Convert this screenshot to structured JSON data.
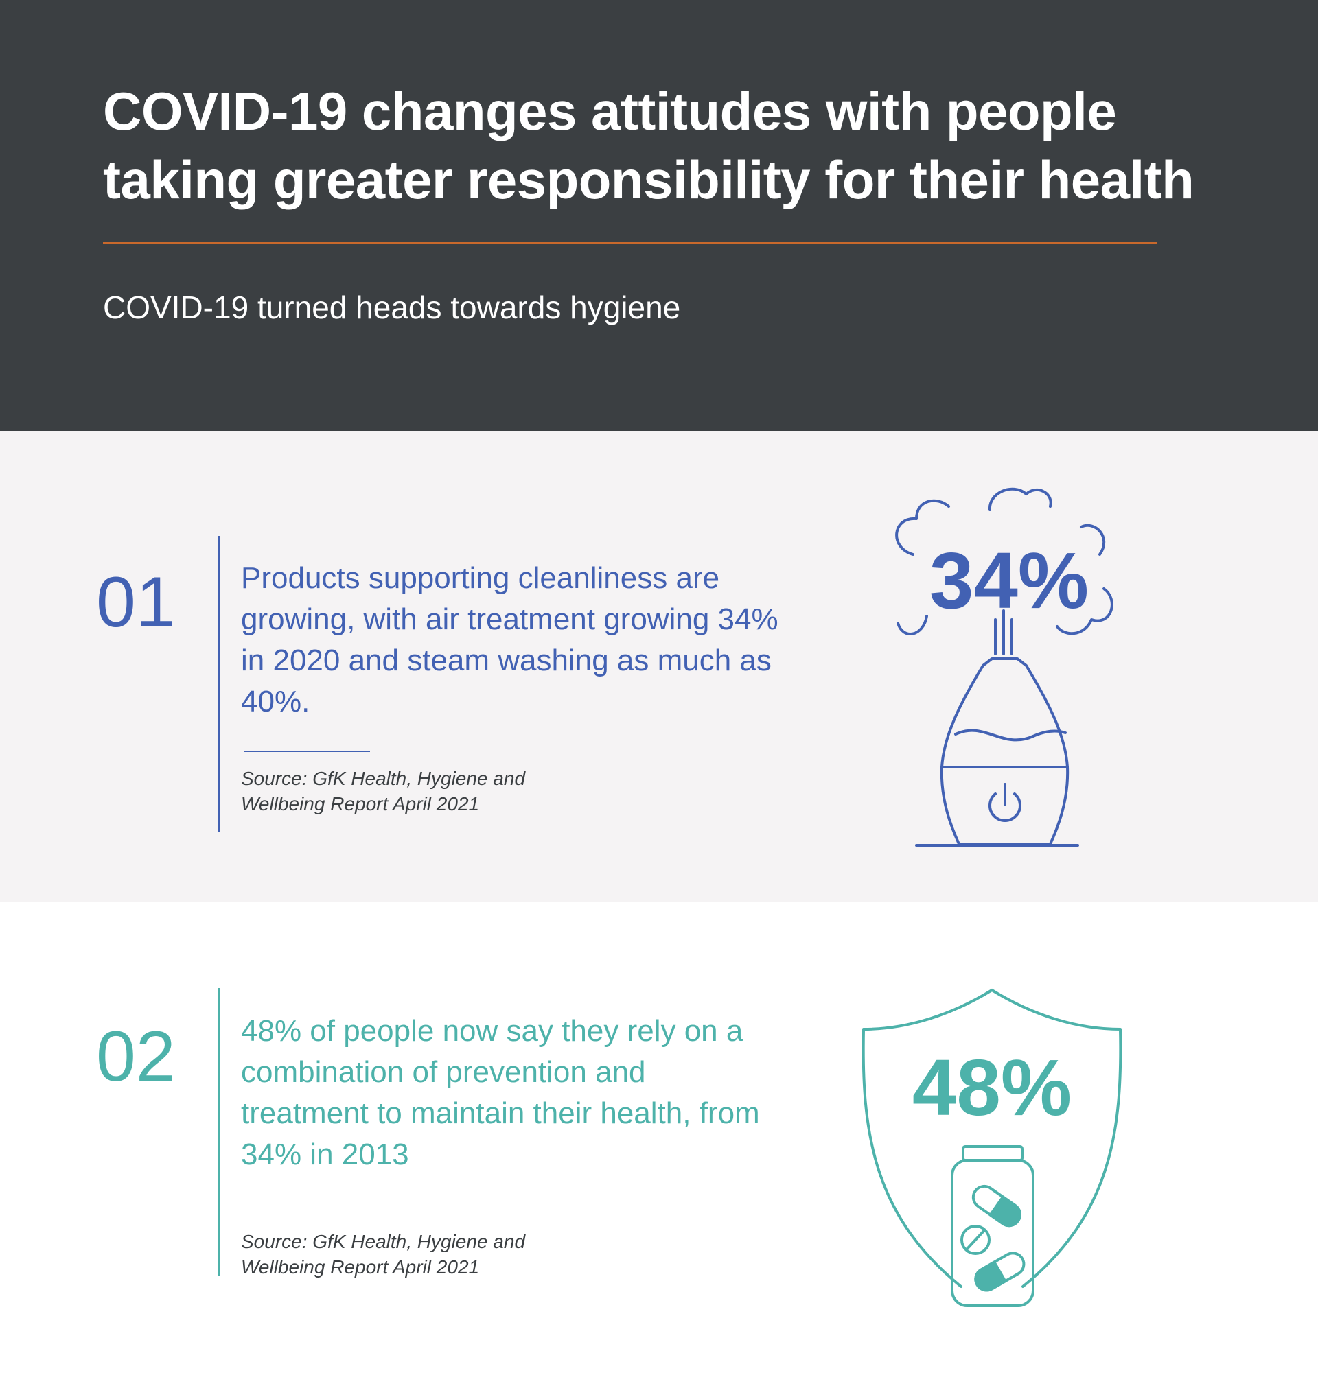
{
  "header": {
    "title": "COVID-19 changes attitudes with people taking greater responsibility for their health",
    "subtitle": "COVID-19 turned heads towards hygiene"
  },
  "items": [
    {
      "number": "01",
      "text": "Products supporting cleanliness are growing, with air treatment growing 34% in 2020 and steam washing as much as 40%.",
      "source": "Source: GfK Health, Hygiene and Wellbeing Report April 2021",
      "icon": "humidifier-icon",
      "icon_value": "34%",
      "color": "#4261b3"
    },
    {
      "number": "02",
      "text": "48% of people now say they rely on a combination of prevention and treatment to maintain their health, from 34% in 2013",
      "source": "Source: GfK Health, Hygiene and Wellbeing Report April 2021",
      "icon": "shield-pills-icon",
      "icon_value": "48%",
      "color": "#4db2aa"
    }
  ],
  "colors": {
    "header_background": "#3b3f42",
    "accent_rule": "#c9692c",
    "band_background": "#f5f3f4"
  }
}
